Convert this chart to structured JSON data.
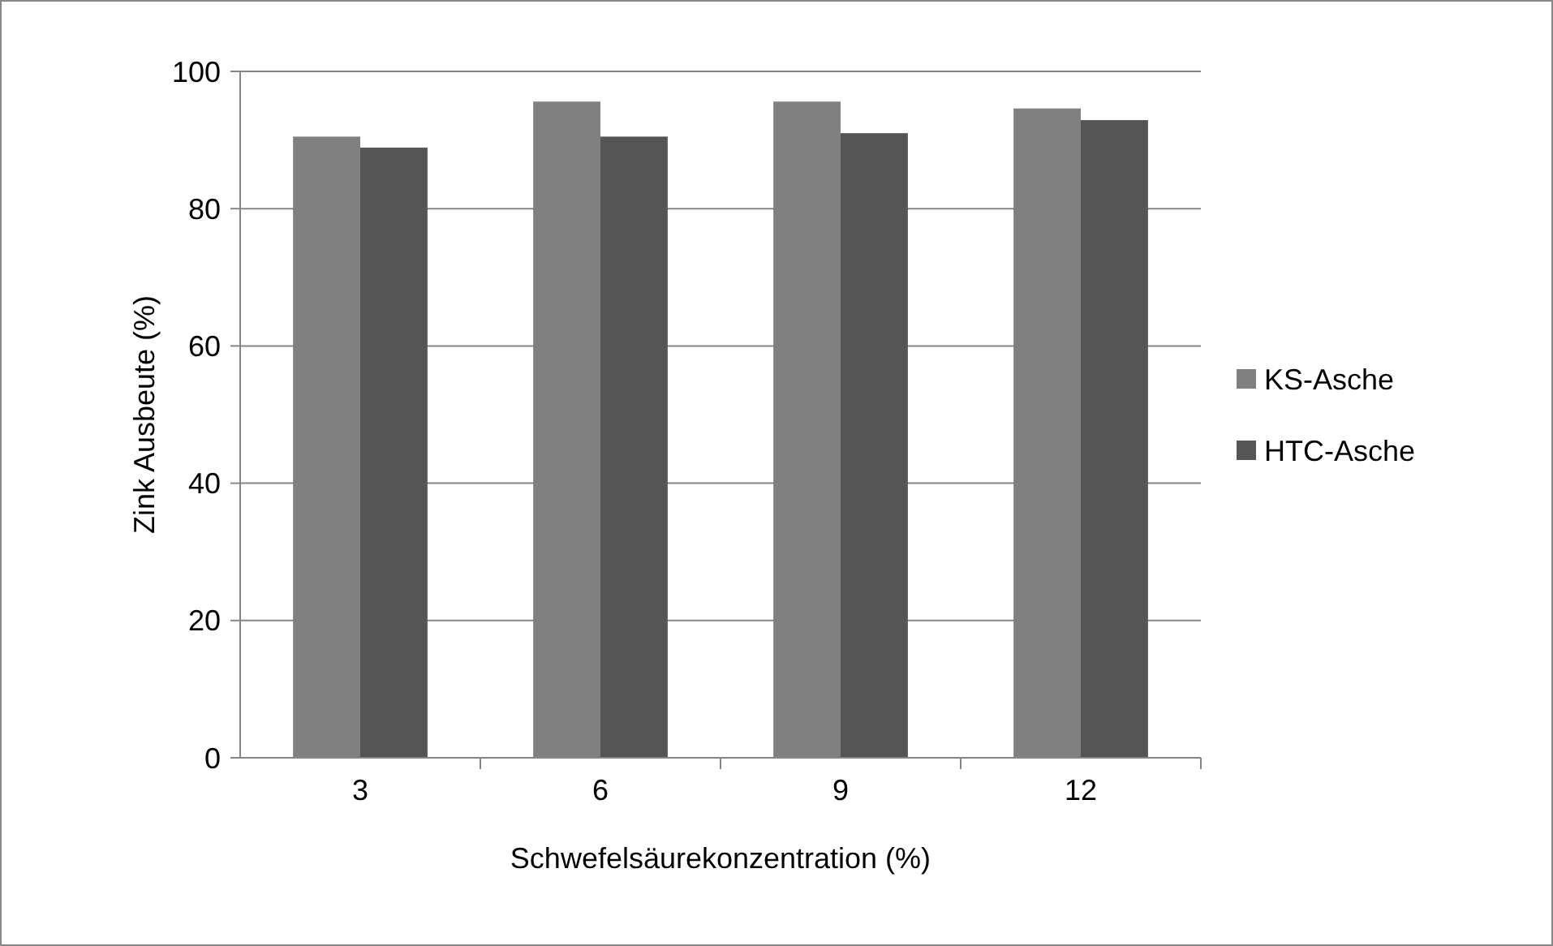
{
  "chart_data": {
    "type": "bar",
    "xlabel": "Schwefelsäurekonzentration (%)",
    "ylabel": "Zink Ausbeute (%)",
    "categories": [
      "3",
      "6",
      "9",
      "12"
    ],
    "series": [
      {
        "name": "KS-Asche",
        "color": "#808080",
        "values": [
          90.5,
          95.6,
          95.6,
          94.6
        ]
      },
      {
        "name": "HTC-Asche",
        "color": "#555555",
        "values": [
          88.9,
          90.5,
          91.0,
          92.9
        ]
      }
    ],
    "ylim": [
      0,
      100
    ],
    "yticks": [
      0,
      20,
      40,
      60,
      80,
      100
    ],
    "grid": "y",
    "legend": "right"
  }
}
